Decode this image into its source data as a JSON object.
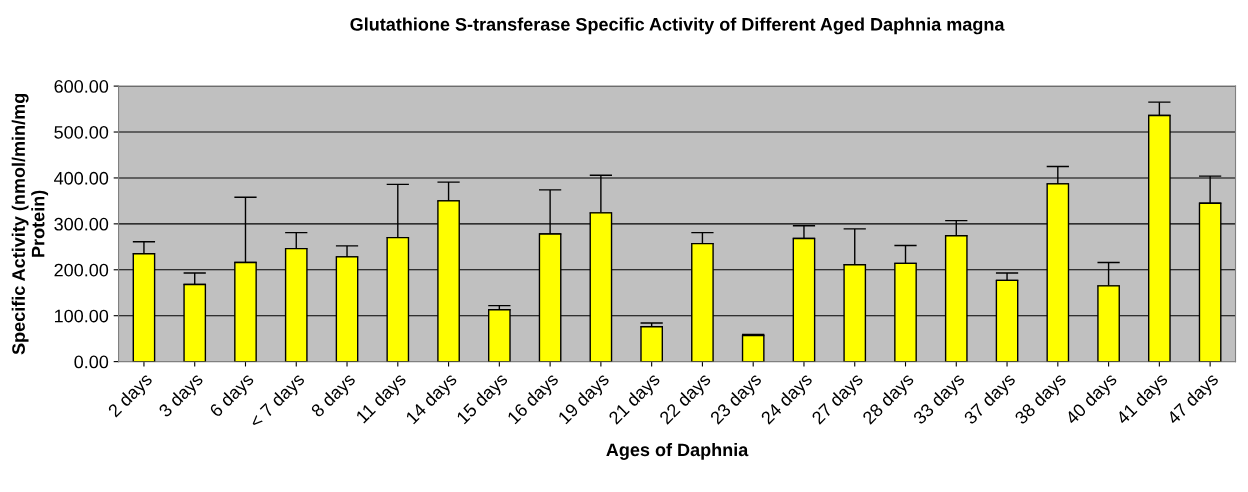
{
  "chart_data": {
    "type": "bar",
    "title": "Glutathione S-transferase Specific Activity of Different Aged Daphnia magna",
    "xlabel": "Ages of Daphnia",
    "ylabel": "Specific Activity (nmol/min/mg\nProtein)",
    "categories": [
      "2 days",
      "3 days",
      "6 days",
      "< 7 days",
      "8 days",
      "11 days",
      "14 days",
      "15 days",
      "16 days",
      "19 days",
      "21 days",
      "22 days",
      "23 days",
      "24 days",
      "27 days",
      "28 days",
      "33 days",
      "37 days",
      "38 days",
      "40 days",
      "41 days",
      "47 days"
    ],
    "values": [
      235,
      168,
      216,
      246,
      228,
      270,
      350,
      113,
      278,
      324,
      76,
      257,
      57,
      268,
      211,
      214,
      274,
      177,
      387,
      165,
      536,
      345
    ],
    "errors": [
      [
        235,
        261
      ],
      [
        168,
        193
      ],
      [
        216,
        358
      ],
      [
        246,
        281
      ],
      [
        228,
        252
      ],
      [
        270,
        386
      ],
      [
        350,
        391
      ],
      [
        113,
        122
      ],
      [
        278,
        374
      ],
      [
        324,
        406
      ],
      [
        76,
        84
      ],
      [
        257,
        281
      ],
      [
        57,
        59
      ],
      [
        268,
        296
      ],
      [
        211,
        289
      ],
      [
        214,
        253
      ],
      [
        274,
        307
      ],
      [
        177,
        193
      ],
      [
        387,
        425
      ],
      [
        165,
        216
      ],
      [
        536,
        565
      ],
      [
        345,
        404
      ]
    ],
    "color": "#ffff00",
    "ylim": [
      0,
      600
    ],
    "yticks": [
      {
        "value": 0,
        "label": "0.00"
      },
      {
        "value": 100,
        "label": "100.00"
      },
      {
        "value": 200,
        "label": "200.00"
      },
      {
        "value": 300,
        "label": "300.00"
      },
      {
        "value": 400,
        "label": "400.00"
      },
      {
        "value": 500,
        "label": "500.00"
      },
      {
        "value": 600,
        "label": "600.00"
      }
    ],
    "grid": "y"
  }
}
